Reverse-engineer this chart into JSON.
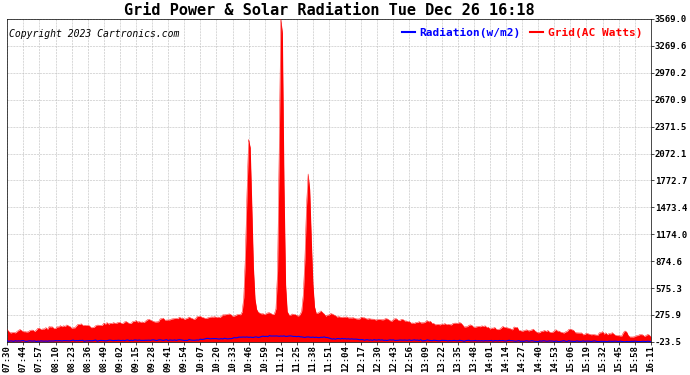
{
  "title": "Grid Power & Solar Radiation Tue Dec 26 16:18",
  "copyright": "Copyright 2023 Cartronics.com",
  "legend_radiation": "Radiation(w/m2)",
  "legend_grid": "Grid(AC Watts)",
  "y_ticks": [
    -23.5,
    275.9,
    575.3,
    874.6,
    1174.0,
    1473.4,
    1772.7,
    2072.1,
    2371.5,
    2670.9,
    2970.2,
    3269.6,
    3569.0
  ],
  "ylim": [
    -23.5,
    3569.0
  ],
  "background_color": "#ffffff",
  "plot_bg_color": "#ffffff",
  "radiation_color": "#ff0000",
  "grid_line_color": "#0000ff",
  "legend_radiation_color": "#0000ff",
  "legend_grid_color": "#ff0000",
  "title_fontsize": 11,
  "copyright_fontsize": 7,
  "legend_fontsize": 8,
  "tick_fontsize": 6.5,
  "grid_linestyle": "--",
  "grid_linewidth": 0.4,
  "grid_color_lines": "#bbbbbb",
  "x_labels": [
    "07:30",
    "07:44",
    "07:57",
    "08:10",
    "08:23",
    "08:36",
    "08:49",
    "09:02",
    "09:15",
    "09:28",
    "09:41",
    "09:54",
    "10:07",
    "10:20",
    "10:33",
    "10:46",
    "10:59",
    "11:12",
    "11:25",
    "11:38",
    "11:51",
    "12:04",
    "12:17",
    "12:30",
    "12:43",
    "12:56",
    "13:09",
    "13:22",
    "13:35",
    "13:48",
    "14:01",
    "14:14",
    "14:27",
    "14:40",
    "14:53",
    "15:06",
    "15:19",
    "15:32",
    "15:45",
    "15:58",
    "16:11"
  ]
}
